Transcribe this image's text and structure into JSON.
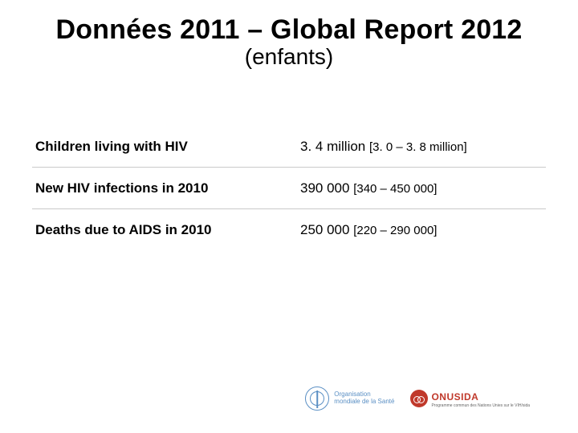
{
  "header": {
    "title": "Données 2011 – Global Report 2012",
    "subtitle": "(enfants)"
  },
  "table": {
    "rows": [
      {
        "label": "Children living with HIV",
        "value_main": "3. 4 million ",
        "value_range": "[3. 0 – 3. 8 million]"
      },
      {
        "label": "New HIV infections in 2010",
        "value_main": "390 000 ",
        "value_range": "[340 – 450 000]"
      },
      {
        "label": "Deaths due to AIDS in 2010",
        "value_main": "250 000 ",
        "value_range": "[220 – 290 000]"
      }
    ]
  },
  "logos": {
    "oms_line1": "Organisation",
    "oms_line2": "mondiale de la Santé",
    "onusida": "ONUSIDA",
    "onusida_sub": "Programme commun des Nations Unies sur le VIH/sida"
  },
  "style": {
    "title_fontsize": 34,
    "subtitle_fontsize": 28,
    "label_fontsize": 17,
    "value_fontsize": 17,
    "range_fontsize": 15,
    "border_color": "#c9c9c9",
    "oms_color": "#5a8fc4",
    "onusida_color": "#c0392b",
    "background_color": "#ffffff"
  }
}
